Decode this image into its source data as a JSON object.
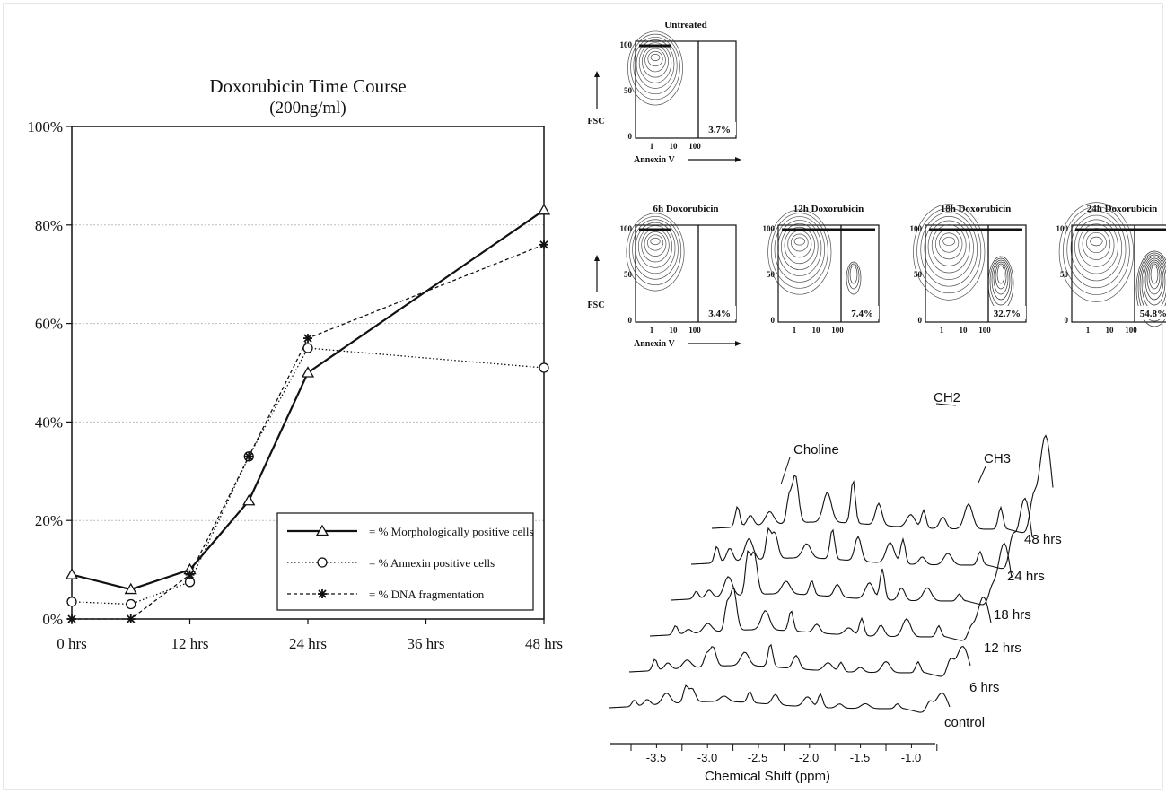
{
  "time_course": {
    "title": "Doxorubicin Time Course",
    "subtitle": "(200ng/ml)",
    "y_ticks": [
      "0%",
      "20%",
      "40%",
      "60%",
      "80%",
      "100%"
    ],
    "x_ticks": [
      "0 hrs",
      "12 hrs",
      "24 hrs",
      "36 hrs",
      "48 hrs"
    ],
    "legend": [
      "= % Morphologically positive cells",
      "= % Annexin positive cells",
      "= % DNA fragmentation"
    ]
  },
  "flow": {
    "panels": [
      {
        "title": "Untreated",
        "percent": "3.7%"
      },
      {
        "title": "6h Doxorubicin",
        "percent": "3.4%"
      },
      {
        "title": "12h Doxorubicin",
        "percent": "7.4%"
      },
      {
        "title": "18h Doxorubicin",
        "percent": "32.7%"
      },
      {
        "title": "24h Doxorubicin",
        "percent": "54.8%"
      }
    ],
    "y_axis_label": "FSC",
    "x_axis_label": "Annexin V",
    "y_ticks": [
      "0",
      "50",
      "100"
    ],
    "x_ticks": [
      "1",
      "10",
      "100"
    ]
  },
  "nmr": {
    "x_label": "Chemical Shift (ppm)",
    "x_ticks": [
      "-3.5",
      "-3.0",
      "-2.5",
      "-2.0",
      "-1.5",
      "-1.0"
    ],
    "peak_labels": [
      "Choline",
      "CH2",
      "CH3"
    ],
    "trace_labels": [
      "48 hrs",
      "24 hrs",
      "18 hrs",
      "12 hrs",
      "6 hrs",
      "control"
    ]
  },
  "chart_data": [
    {
      "type": "line",
      "title": "Doxorubicin Time Course",
      "subtitle": "(200ng/ml)",
      "xlabel": "",
      "ylabel": "",
      "xlim": [
        0,
        48
      ],
      "ylim": [
        0,
        100
      ],
      "y_unit": "%",
      "grid": "horizontal",
      "legend_position": "bottom-right",
      "series": [
        {
          "name": "% Morphologically positive cells",
          "marker": "triangle",
          "line": "solid",
          "x": [
            0,
            6,
            12,
            18,
            24,
            48
          ],
          "y": [
            9,
            6,
            10,
            24,
            50,
            83
          ]
        },
        {
          "name": "% Annexin positive cells",
          "marker": "circle",
          "line": "dotted",
          "x": [
            0,
            6,
            12,
            18,
            24,
            48
          ],
          "y": [
            3.5,
            3,
            7.5,
            33,
            55,
            51
          ]
        },
        {
          "name": "% DNA fragmentation",
          "marker": "star",
          "line": "dashed",
          "x": [
            0,
            6,
            12,
            18,
            24,
            48
          ],
          "y": [
            0,
            0,
            9,
            33,
            57,
            76
          ]
        }
      ]
    },
    {
      "type": "heatmap",
      "subtype": "flow cytometry contour plots",
      "x_axis": "Annexin V (log)",
      "y_axis": "FSC",
      "ylim": [
        0,
        100
      ],
      "panels": [
        {
          "title": "Untreated",
          "annexin_positive_percent": 3.7
        },
        {
          "title": "6h Doxorubicin",
          "annexin_positive_percent": 3.4
        },
        {
          "title": "12h Doxorubicin",
          "annexin_positive_percent": 7.4
        },
        {
          "title": "18h Doxorubicin",
          "annexin_positive_percent": 32.7
        },
        {
          "title": "24h Doxorubicin",
          "annexin_positive_percent": 54.8
        }
      ]
    },
    {
      "type": "line",
      "subtype": "stacked NMR spectra",
      "xlabel": "Chemical Shift (ppm)",
      "x_ticks": [
        -3.5,
        -3.0,
        -2.5,
        -2.0,
        -1.5,
        -1.0
      ],
      "traces": [
        "control",
        "6 hrs",
        "12 hrs",
        "18 hrs",
        "24 hrs",
        "48 hrs"
      ],
      "peaks": [
        {
          "label": "Choline",
          "ppm": -2.2
        },
        {
          "label": "CH2",
          "ppm": -1.3
        },
        {
          "label": "CH3",
          "ppm": -0.9
        }
      ]
    }
  ]
}
